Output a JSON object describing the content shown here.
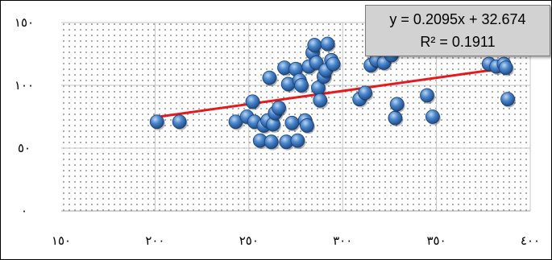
{
  "chart_data": {
    "type": "scatter",
    "xlim": [
      150,
      400
    ],
    "ylim": [
      0,
      150
    ],
    "x_ticks": [
      150,
      200,
      250,
      300,
      350,
      400
    ],
    "y_ticks": [
      0,
      50,
      100,
      150
    ],
    "x_tick_labels": [
      "١٥٠",
      "٢٠٠",
      "٢٥٠",
      "٣٠٠",
      "٣٥٠",
      "٤٠٠"
    ],
    "y_tick_labels": [
      "٠",
      "٥٠",
      "١٠٠",
      "١٥٠"
    ],
    "grid": true,
    "marker_color": "#3a78c0",
    "trendline_color": "#e41a1c",
    "trendline": {
      "slope": 0.2095,
      "intercept": 32.674,
      "x_start": 201,
      "x_end": 388
    },
    "annotation": {
      "equation": "y = 0.2095x + 32.674",
      "r_squared": "R² = 0.1911"
    },
    "points": [
      {
        "x": 201,
        "y": 71
      },
      {
        "x": 213,
        "y": 71
      },
      {
        "x": 243,
        "y": 71
      },
      {
        "x": 249,
        "y": 75
      },
      {
        "x": 252,
        "y": 87
      },
      {
        "x": 253,
        "y": 71
      },
      {
        "x": 256,
        "y": 56
      },
      {
        "x": 258,
        "y": 68
      },
      {
        "x": 260,
        "y": 72
      },
      {
        "x": 261,
        "y": 106
      },
      {
        "x": 262,
        "y": 55
      },
      {
        "x": 263,
        "y": 69
      },
      {
        "x": 264,
        "y": 78
      },
      {
        "x": 266,
        "y": 82
      },
      {
        "x": 269,
        "y": 114
      },
      {
        "x": 270,
        "y": 55
      },
      {
        "x": 271,
        "y": 101
      },
      {
        "x": 273,
        "y": 70
      },
      {
        "x": 275,
        "y": 113
      },
      {
        "x": 276,
        "y": 56
      },
      {
        "x": 277,
        "y": 104
      },
      {
        "x": 278,
        "y": 100
      },
      {
        "x": 280,
        "y": 72
      },
      {
        "x": 281,
        "y": 68
      },
      {
        "x": 282,
        "y": 115
      },
      {
        "x": 284,
        "y": 126
      },
      {
        "x": 285,
        "y": 132
      },
      {
        "x": 286,
        "y": 118
      },
      {
        "x": 287,
        "y": 98
      },
      {
        "x": 288,
        "y": 88
      },
      {
        "x": 290,
        "y": 107
      },
      {
        "x": 291,
        "y": 112
      },
      {
        "x": 292,
        "y": 133
      },
      {
        "x": 294,
        "y": 120
      },
      {
        "x": 295,
        "y": 117
      },
      {
        "x": 309,
        "y": 89
      },
      {
        "x": 312,
        "y": 94
      },
      {
        "x": 315,
        "y": 116
      },
      {
        "x": 318,
        "y": 120
      },
      {
        "x": 322,
        "y": 118
      },
      {
        "x": 326,
        "y": 124
      },
      {
        "x": 328,
        "y": 74
      },
      {
        "x": 329,
        "y": 85
      },
      {
        "x": 345,
        "y": 92
      },
      {
        "x": 348,
        "y": 75
      },
      {
        "x": 378,
        "y": 117
      },
      {
        "x": 382,
        "y": 115
      },
      {
        "x": 386,
        "y": 117
      },
      {
        "x": 387,
        "y": 114
      },
      {
        "x": 388,
        "y": 89
      }
    ]
  }
}
